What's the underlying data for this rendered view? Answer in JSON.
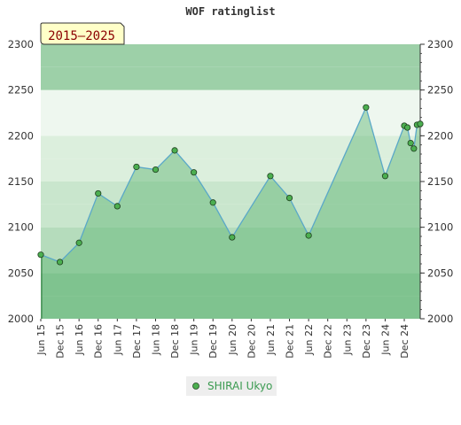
{
  "chart_data": {
    "type": "area",
    "title": "WOF ratinglist",
    "period_label": "2015–2025",
    "xlabel": "",
    "ylabel": "",
    "ylim": [
      2000,
      2300
    ],
    "y_ticks": [
      2000,
      2050,
      2100,
      2150,
      2200,
      2250,
      2300
    ],
    "x_ticks": [
      "Jun 15",
      "Dec 15",
      "Jun 16",
      "Dec 16",
      "Jun 17",
      "Dec 17",
      "Jun 18",
      "Dec 18",
      "Jun 19",
      "Dec 19",
      "Jun 20",
      "Dec 20",
      "Jun 21",
      "Dec 21",
      "Jun 22",
      "Dec 22",
      "Jun 23",
      "Dec 23",
      "Jun 24",
      "Dec 24"
    ],
    "x_range": [
      2015.4167,
      2025.3333
    ],
    "grid": true,
    "legend_position": "bottom-center",
    "colors": {
      "line": "#5aa8c8",
      "area": "#5cb371",
      "marker": "#4caf50"
    },
    "series": [
      {
        "name": "SHIRAI Ukyo",
        "x": [
          2015.4167,
          2015.9167,
          2016.4167,
          2016.9167,
          2017.4167,
          2017.9167,
          2018.4167,
          2018.9167,
          2019.4167,
          2019.9167,
          2020.4167,
          2021.4167,
          2021.9167,
          2022.4167,
          2023.9167,
          2024.4167,
          2024.9167,
          2025.0,
          2025.0833,
          2025.1667,
          2025.25,
          2025.3333
        ],
        "y": [
          2070,
          2062,
          2083,
          2137,
          2123,
          2166,
          2163,
          2184,
          2160,
          2127,
          2089,
          2156,
          2132,
          2091,
          2231,
          2156,
          2211,
          2209,
          2192,
          2186,
          2212,
          2213
        ]
      }
    ]
  }
}
